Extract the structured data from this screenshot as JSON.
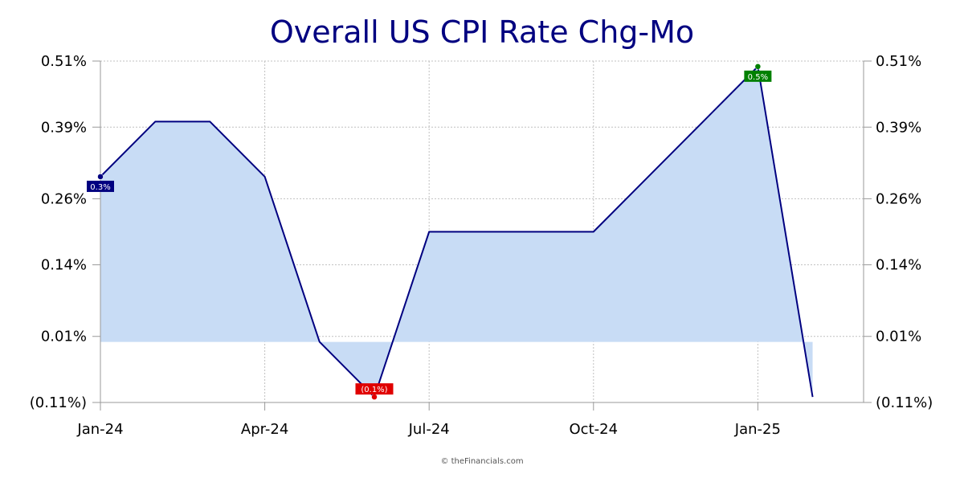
{
  "chart_data": {
    "type": "area",
    "title": "Overall US CPI Rate Chg-Mo",
    "x": [
      "Jan-24",
      "Feb-24",
      "Mar-24",
      "Apr-24",
      "May-24",
      "Jun-24",
      "Jul-24",
      "Aug-24",
      "Sep-24",
      "Oct-24",
      "Nov-24",
      "Dec-24",
      "Jan-25",
      "Feb-25"
    ],
    "series": [
      {
        "values": [
          0.3,
          0.4,
          0.4,
          0.3,
          0.0,
          -0.1,
          0.2,
          0.2,
          0.2,
          0.2,
          0.3,
          0.4,
          0.5,
          -0.1
        ]
      }
    ],
    "x_tick_labels": [
      "Jan-24",
      "Apr-24",
      "Jul-24",
      "Oct-24",
      "Jan-25"
    ],
    "y_ticks": [
      0.51,
      0.39,
      0.26,
      0.14,
      0.01,
      -0.11
    ],
    "y_tick_labels": [
      "0.51%",
      "0.39%",
      "0.26%",
      "0.14%",
      "0.01%",
      "(0.11%)"
    ],
    "ylim": [
      -0.11,
      0.51
    ],
    "grid": true,
    "baseline": 0,
    "annotations": [
      {
        "label": "0.3%",
        "x": "Jan-24",
        "value": 0.3,
        "color": "#000080"
      },
      {
        "label": "(0.1%)",
        "x": "Jun-24",
        "value": -0.1,
        "color": "#e00000"
      },
      {
        "label": "0.5%",
        "x": "Jan-25",
        "value": 0.5,
        "color": "#008000"
      }
    ],
    "colors": {
      "line": "#000080",
      "fill": "#c8dcf5",
      "grid": "#c0c0c0",
      "title": "#000080"
    }
  },
  "footer": {
    "credit": "© theFinancials.com"
  }
}
